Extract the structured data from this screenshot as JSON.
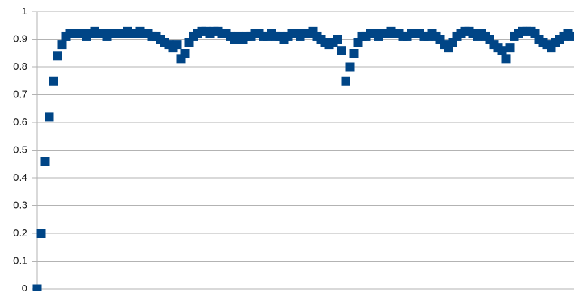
{
  "chart_data": {
    "type": "scatter",
    "color": "#004586",
    "grid": true,
    "values": [
      0,
      0.2,
      0.46,
      0.62,
      0.75,
      0.84,
      0.88,
      0.91,
      0.92,
      0.92,
      0.92,
      0.92,
      0.91,
      0.92,
      0.93,
      0.92,
      0.92,
      0.91,
      0.92,
      0.92,
      0.92,
      0.92,
      0.93,
      0.92,
      0.92,
      0.93,
      0.92,
      0.92,
      0.91,
      0.91,
      0.9,
      0.89,
      0.88,
      0.87,
      0.88,
      0.83,
      0.85,
      0.89,
      0.91,
      0.92,
      0.93,
      0.93,
      0.92,
      0.93,
      0.93,
      0.92,
      0.92,
      0.91,
      0.9,
      0.91,
      0.9,
      0.91,
      0.91,
      0.92,
      0.92,
      0.91,
      0.91,
      0.92,
      0.91,
      0.91,
      0.9,
      0.91,
      0.92,
      0.92,
      0.91,
      0.92,
      0.92,
      0.93,
      0.91,
      0.9,
      0.89,
      0.88,
      0.89,
      0.9,
      0.86,
      0.75,
      0.8,
      0.85,
      0.89,
      0.91,
      0.91,
      0.92,
      0.92,
      0.91,
      0.92,
      0.92,
      0.93,
      0.92,
      0.92,
      0.91,
      0.91,
      0.92,
      0.92,
      0.92,
      0.91,
      0.91,
      0.92,
      0.91,
      0.9,
      0.88,
      0.87,
      0.89,
      0.91,
      0.92,
      0.93,
      0.93,
      0.92,
      0.91,
      0.92,
      0.91,
      0.9,
      0.88,
      0.87,
      0.86,
      0.83,
      0.87,
      0.91,
      0.92,
      0.93,
      0.93,
      0.93,
      0.92,
      0.9,
      0.89,
      0.88,
      0.87,
      0.89,
      0.9,
      0.91,
      0.92,
      0.91
    ],
    "ylim": [
      0,
      1
    ],
    "yticks": [
      0,
      0.1,
      0.2,
      0.3,
      0.4,
      0.5,
      0.6,
      0.7,
      0.8,
      0.9,
      1
    ]
  }
}
